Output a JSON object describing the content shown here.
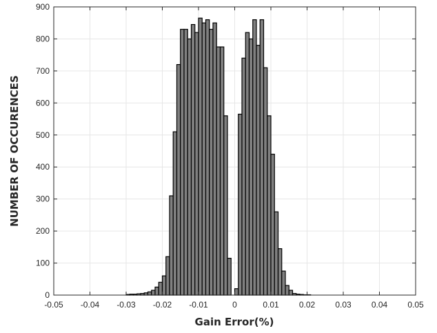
{
  "chart_data": {
    "type": "bar",
    "title": "",
    "xlabel": "Gain Error(%)",
    "ylabel": "NUMBER OF OCCURENCES",
    "xlim": [
      -0.05,
      0.05
    ],
    "ylim": [
      0,
      900
    ],
    "grid": true,
    "bin_width": 0.001,
    "xticks": [
      -0.05,
      -0.04,
      -0.03,
      -0.02,
      -0.01,
      0,
      0.01,
      0.02,
      0.03,
      0.04,
      0.05
    ],
    "xtick_labels": [
      "-0.05",
      "-0.04",
      "-0.03",
      "-0.02",
      "-0.01",
      "0",
      "0.01",
      "0.02",
      "0.03",
      "0.04",
      "0.05"
    ],
    "yticks": [
      0,
      100,
      200,
      300,
      400,
      500,
      600,
      700,
      800,
      900
    ],
    "ytick_labels": [
      "0",
      "100",
      "200",
      "300",
      "400",
      "500",
      "600",
      "700",
      "800",
      "900"
    ],
    "bin_centers": [
      -0.0295,
      -0.0285,
      -0.0275,
      -0.0265,
      -0.0255,
      -0.0245,
      -0.0235,
      -0.0225,
      -0.0215,
      -0.0205,
      -0.0195,
      -0.0185,
      -0.0175,
      -0.0165,
      -0.0155,
      -0.0145,
      -0.0135,
      -0.0125,
      -0.0115,
      -0.0105,
      -0.0095,
      -0.0085,
      -0.0075,
      -0.0065,
      -0.0055,
      -0.0045,
      -0.0035,
      -0.0025,
      -0.0015,
      -0.0005,
      0.0005,
      0.0015,
      0.0025,
      0.0035,
      0.0045,
      0.0055,
      0.0065,
      0.0075,
      0.0085,
      0.0095,
      0.0105,
      0.0115,
      0.0125,
      0.0135,
      0.0145,
      0.0155,
      0.0165,
      0.0175,
      0.0185,
      0.0195,
      0.0205
    ],
    "values": [
      2,
      3,
      3,
      4,
      5,
      7,
      10,
      15,
      25,
      40,
      60,
      120,
      310,
      510,
      720,
      830,
      830,
      800,
      845,
      820,
      865,
      850,
      860,
      830,
      850,
      775,
      775,
      560,
      115,
      0,
      20,
      565,
      740,
      820,
      800,
      860,
      780,
      860,
      710,
      560,
      440,
      260,
      145,
      75,
      30,
      15,
      5,
      3,
      2,
      1,
      1
    ]
  }
}
